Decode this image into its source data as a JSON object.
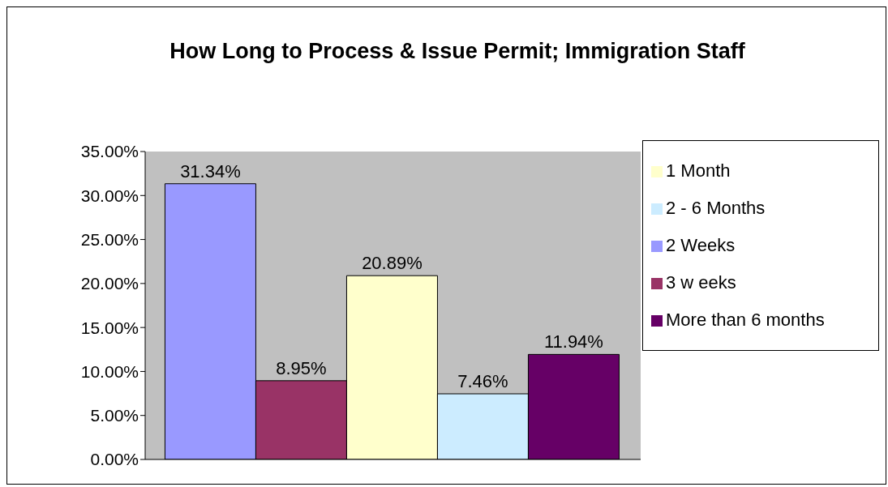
{
  "chart_data": {
    "type": "bar",
    "title": "How Long to Process & Issue Permit; Immigration Staff",
    "categories": [
      null
    ],
    "series": [
      {
        "name": "2 Weeks",
        "color": "#9999ff",
        "values": [
          31.34
        ],
        "value_labels": [
          "31.34%"
        ]
      },
      {
        "name": "3 w eeks",
        "color": "#993366",
        "values": [
          8.95
        ],
        "value_labels": [
          "8.95%"
        ]
      },
      {
        "name": "1 Month",
        "color": "#ffffcc",
        "values": [
          20.89
        ],
        "value_labels": [
          "20.89%"
        ]
      },
      {
        "name": "2 - 6 Months",
        "color": "#ccecff",
        "values": [
          7.46
        ],
        "value_labels": [
          "7.46%"
        ]
      },
      {
        "name": "More than 6 months",
        "color": "#660066",
        "values": [
          11.94
        ],
        "value_labels": [
          "11.94%"
        ]
      }
    ],
    "ylim": [
      0,
      35
    ],
    "yticks": [
      {
        "value": 0,
        "label": "0.00%"
      },
      {
        "value": 5,
        "label": "5.00%"
      },
      {
        "value": 10,
        "label": "10.00%"
      },
      {
        "value": 15,
        "label": "15.00%"
      },
      {
        "value": 20,
        "label": "20.00%"
      },
      {
        "value": 25,
        "label": "25.00%"
      },
      {
        "value": 30,
        "label": "30.00%"
      },
      {
        "value": 35,
        "label": "35.00%"
      }
    ],
    "grid": false,
    "legend": "right"
  }
}
